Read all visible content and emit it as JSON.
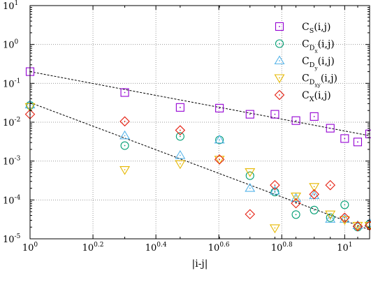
{
  "chart_data": {
    "type": "scatter",
    "title": "",
    "xlabel": "|i-j|",
    "ylabel": "",
    "xscale": "log",
    "yscale": "log",
    "xlim": [
      1,
      12
    ],
    "ylim": [
      1e-05,
      10
    ],
    "grid": true,
    "legend": "top-right",
    "x_ticks": [
      {
        "base": "10",
        "exp": "0"
      },
      {
        "base": "10",
        "exp": "0.2"
      },
      {
        "base": "10",
        "exp": "0.4"
      },
      {
        "base": "10",
        "exp": "0.6"
      },
      {
        "base": "10",
        "exp": "0.8"
      },
      {
        "base": "10",
        "exp": "1"
      }
    ],
    "y_ticks": [
      {
        "base": "10",
        "exp": "-5"
      },
      {
        "base": "10",
        "exp": "-4"
      },
      {
        "base": "10",
        "exp": "-3"
      },
      {
        "base": "10",
        "exp": "-2"
      },
      {
        "base": "10",
        "exp": "-1"
      },
      {
        "base": "10",
        "exp": "0"
      },
      {
        "base": "10",
        "exp": "1"
      }
    ],
    "series": [
      {
        "name": "C",
        "sub": "S",
        "subsub": "",
        "tail": "(i,j)",
        "marker": "square",
        "color": "#9400d3",
        "x": [
          1,
          2,
          3,
          4,
          5,
          6,
          7,
          8,
          9,
          10,
          11,
          12
        ],
        "y": [
          0.2,
          0.058,
          0.024,
          0.023,
          0.016,
          0.016,
          0.011,
          0.014,
          0.007,
          0.0038,
          0.0031,
          0.005
        ]
      },
      {
        "name": "C",
        "sub": "D",
        "subsub": "x",
        "tail": "(i,j)",
        "marker": "circle",
        "color": "#009e73",
        "x": [
          1,
          2,
          3,
          4,
          5,
          6,
          7,
          8,
          9,
          10,
          11,
          12
        ],
        "y": [
          0.027,
          0.0025,
          0.0043,
          0.0035,
          0.00042,
          0.00016,
          4.2e-05,
          5.5e-05,
          3.5e-05,
          7.5e-05,
          2e-05,
          2.4e-05
        ]
      },
      {
        "name": "C",
        "sub": "D",
        "subsub": "y",
        "tail": "(i,j)",
        "marker": "triangle-up",
        "color": "#56b4e9",
        "x": [
          1,
          2,
          3,
          4,
          5,
          6,
          7,
          8,
          9,
          10,
          11,
          12
        ],
        "y": [
          0.028,
          0.0045,
          0.0014,
          0.0035,
          0.0002,
          0.00017,
          0.00011,
          0.00013,
          3.2e-05,
          3.2e-05,
          2.2e-05,
          2.5e-05
        ]
      },
      {
        "name": "C",
        "sub": "D",
        "subsub": "xy",
        "tail": "(i,j)",
        "marker": "triangle-down",
        "color": "#e6b800",
        "x": [
          1,
          2,
          3,
          4,
          5,
          6,
          7,
          8,
          9,
          10,
          11,
          12
        ],
        "y": [
          0.025,
          0.0006,
          0.00085,
          0.0011,
          0.00053,
          1.9e-05,
          0.000125,
          0.00022,
          4.3e-05,
          3.1e-05,
          2.2e-05,
          2.2e-05
        ]
      },
      {
        "name": "C",
        "sub": "X",
        "subsub": "",
        "tail": "(i,j)",
        "marker": "diamond",
        "color": "#e51e10",
        "x": [
          1,
          2,
          3,
          4,
          5,
          6,
          7,
          8,
          9,
          10,
          11,
          12
        ],
        "y": [
          0.016,
          0.0105,
          0.0062,
          0.0011,
          4.3e-05,
          0.00024,
          8.2e-05,
          0.00014,
          0.00024,
          3.5e-05,
          2.1e-05,
          2.2e-05
        ]
      }
    ],
    "fit_lines": [
      {
        "x": [
          1,
          12
        ],
        "y": [
          0.2,
          0.0045
        ]
      },
      {
        "x": [
          1,
          12
        ],
        "y": [
          0.032,
          1.7e-05
        ]
      }
    ]
  }
}
